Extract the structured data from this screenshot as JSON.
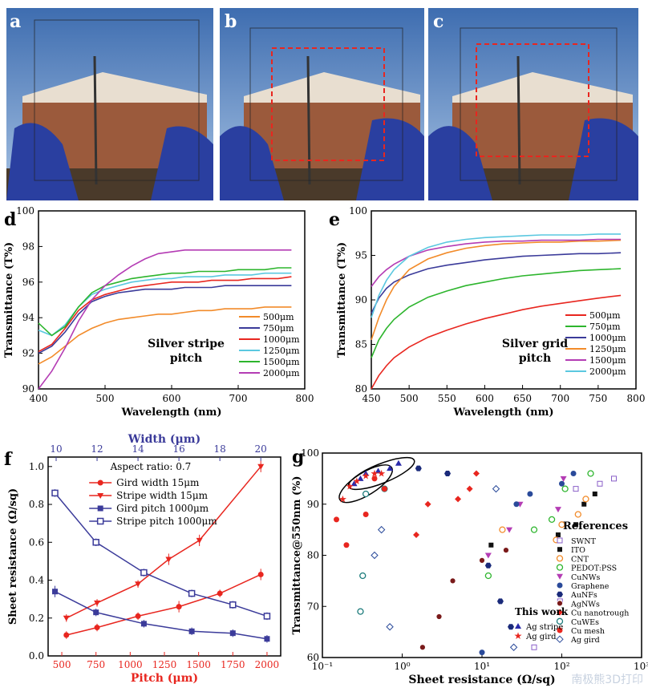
{
  "photos": [
    {
      "label": "a",
      "marked": false
    },
    {
      "label": "b",
      "marked": true
    },
    {
      "label": "c",
      "marked": true
    }
  ],
  "watermark": "南极熊3D打印",
  "chart_data": [
    {
      "id": "d",
      "panel_label": "d",
      "type": "line",
      "xlabel": "Wavelength (nm)",
      "ylabel": "Transmittance (T%)",
      "xlim": [
        400,
        800
      ],
      "ylim": [
        90,
        100
      ],
      "xticks": [
        400,
        500,
        600,
        700,
        800
      ],
      "yticks": [
        90,
        92,
        94,
        96,
        98,
        100
      ],
      "annotation": [
        "Silver stripe",
        "pitch"
      ],
      "legend_position": "bottom-right",
      "series": [
        {
          "name": "500μm",
          "color": "#f28b2a",
          "x": [
            400,
            420,
            440,
            460,
            480,
            500,
            520,
            540,
            560,
            580,
            600,
            620,
            640,
            660,
            680,
            700,
            720,
            740,
            760,
            780
          ],
          "y": [
            91.4,
            91.8,
            92.4,
            93.0,
            93.4,
            93.7,
            93.9,
            94.0,
            94.1,
            94.2,
            94.2,
            94.3,
            94.4,
            94.4,
            94.5,
            94.5,
            94.5,
            94.6,
            94.6,
            94.6
          ]
        },
        {
          "name": "750μm",
          "color": "#3b3b9a",
          "x": [
            400,
            420,
            440,
            460,
            480,
            500,
            520,
            540,
            560,
            580,
            600,
            620,
            640,
            660,
            680,
            700,
            720,
            740,
            760,
            780
          ],
          "y": [
            92.0,
            92.4,
            93.2,
            94.2,
            94.9,
            95.2,
            95.4,
            95.5,
            95.6,
            95.6,
            95.6,
            95.7,
            95.7,
            95.7,
            95.8,
            95.8,
            95.8,
            95.8,
            95.8,
            95.8
          ]
        },
        {
          "name": "1000μm",
          "color": "#e8261f",
          "x": [
            400,
            420,
            440,
            460,
            480,
            500,
            520,
            540,
            560,
            580,
            600,
            620,
            640,
            660,
            680,
            700,
            720,
            740,
            760,
            780
          ],
          "y": [
            92.1,
            92.5,
            93.4,
            94.4,
            95.0,
            95.3,
            95.5,
            95.7,
            95.8,
            95.9,
            96.0,
            96.0,
            96.0,
            96.1,
            96.1,
            96.1,
            96.2,
            96.2,
            96.2,
            96.3
          ]
        },
        {
          "name": "1250μm",
          "color": "#5bc8e0",
          "x": [
            400,
            420,
            440,
            460,
            480,
            500,
            520,
            540,
            560,
            580,
            600,
            620,
            640,
            660,
            680,
            700,
            720,
            740,
            760,
            780
          ],
          "y": [
            93.3,
            93.0,
            93.6,
            94.6,
            95.3,
            95.6,
            95.8,
            96.0,
            96.1,
            96.2,
            96.2,
            96.3,
            96.3,
            96.3,
            96.4,
            96.4,
            96.4,
            96.5,
            96.5,
            96.5
          ]
        },
        {
          "name": "1500μm",
          "color": "#2db52d",
          "x": [
            400,
            420,
            440,
            460,
            480,
            500,
            520,
            540,
            560,
            580,
            600,
            620,
            640,
            660,
            680,
            700,
            720,
            740,
            760,
            780
          ],
          "y": [
            93.7,
            93.0,
            93.5,
            94.6,
            95.4,
            95.8,
            96.0,
            96.2,
            96.3,
            96.4,
            96.5,
            96.5,
            96.6,
            96.6,
            96.6,
            96.7,
            96.7,
            96.7,
            96.8,
            96.8
          ]
        },
        {
          "name": "2000μm",
          "color": "#b43cb4",
          "x": [
            400,
            420,
            440,
            460,
            480,
            500,
            520,
            540,
            560,
            580,
            600,
            620,
            640,
            660,
            680,
            700,
            720,
            740,
            760,
            780
          ],
          "y": [
            90.0,
            91.0,
            92.3,
            93.8,
            95.0,
            95.8,
            96.4,
            96.9,
            97.3,
            97.6,
            97.7,
            97.8,
            97.8,
            97.8,
            97.8,
            97.8,
            97.8,
            97.8,
            97.8,
            97.8
          ]
        }
      ]
    },
    {
      "id": "e",
      "panel_label": "e",
      "type": "line",
      "xlabel": "Wavelength (nm)",
      "ylabel": "Transmittance (T%)",
      "xlim": [
        450,
        800
      ],
      "ylim": [
        80,
        100
      ],
      "xticks": [
        450,
        500,
        550,
        600,
        650,
        700,
        750,
        800
      ],
      "yticks": [
        80,
        85,
        90,
        95,
        100
      ],
      "annotation": [
        "Silver grid",
        "pitch"
      ],
      "legend_position": "bottom-right",
      "series": [
        {
          "name": "500μm",
          "color": "#e8261f",
          "x": [
            450,
            460,
            470,
            480,
            500,
            525,
            550,
            575,
            600,
            625,
            650,
            675,
            700,
            725,
            750,
            780
          ],
          "y": [
            80.0,
            81.5,
            82.6,
            83.5,
            84.7,
            85.8,
            86.6,
            87.3,
            87.9,
            88.4,
            88.9,
            89.3,
            89.6,
            89.9,
            90.2,
            90.5
          ]
        },
        {
          "name": "750μm",
          "color": "#2db52d",
          "x": [
            450,
            460,
            470,
            480,
            500,
            525,
            550,
            575,
            600,
            625,
            650,
            675,
            700,
            725,
            750,
            780
          ],
          "y": [
            83.5,
            85.5,
            86.8,
            87.8,
            89.2,
            90.3,
            91.0,
            91.6,
            92.0,
            92.4,
            92.7,
            92.9,
            93.1,
            93.3,
            93.4,
            93.5
          ]
        },
        {
          "name": "1000μm",
          "color": "#3b3b9a",
          "x": [
            450,
            460,
            470,
            480,
            500,
            525,
            550,
            575,
            600,
            625,
            650,
            675,
            700,
            725,
            750,
            780
          ],
          "y": [
            88.5,
            90.2,
            91.3,
            92.0,
            92.8,
            93.5,
            93.9,
            94.2,
            94.5,
            94.7,
            94.9,
            95.0,
            95.1,
            95.2,
            95.2,
            95.3
          ]
        },
        {
          "name": "1250μm",
          "color": "#f28b2a",
          "x": [
            450,
            460,
            470,
            480,
            500,
            525,
            550,
            575,
            600,
            625,
            650,
            675,
            700,
            725,
            750,
            780
          ],
          "y": [
            85.5,
            88.0,
            90.0,
            91.5,
            93.4,
            94.6,
            95.3,
            95.8,
            96.1,
            96.3,
            96.4,
            96.5,
            96.5,
            96.6,
            96.6,
            96.7
          ]
        },
        {
          "name": "1500μm",
          "color": "#b43cb4",
          "x": [
            450,
            460,
            470,
            480,
            500,
            525,
            550,
            575,
            600,
            625,
            650,
            675,
            700,
            725,
            750,
            780
          ],
          "y": [
            91.5,
            92.6,
            93.4,
            94.0,
            94.9,
            95.6,
            96.0,
            96.3,
            96.5,
            96.6,
            96.6,
            96.7,
            96.7,
            96.7,
            96.8,
            96.8
          ]
        },
        {
          "name": "2000μm",
          "color": "#5bc8e0",
          "x": [
            450,
            460,
            470,
            480,
            500,
            525,
            550,
            575,
            600,
            625,
            650,
            675,
            700,
            725,
            750,
            780
          ],
          "y": [
            88.0,
            90.5,
            92.2,
            93.4,
            94.9,
            95.9,
            96.5,
            96.8,
            97.0,
            97.1,
            97.2,
            97.3,
            97.3,
            97.3,
            97.4,
            97.4
          ]
        }
      ]
    },
    {
      "id": "f",
      "panel_label": "f",
      "type": "line",
      "xlabel": "Pitch (μm)",
      "x2label": "Width (μm)",
      "ylabel": "Sheet resistance (Ω/sq)",
      "xlim": [
        400,
        2100
      ],
      "x2lim": [
        10,
        20
      ],
      "ylim": [
        0,
        1.05
      ],
      "xticks": [
        500,
        750,
        1000,
        1250,
        1500,
        1750,
        2000
      ],
      "x2ticks": [
        10,
        12,
        14,
        16,
        18,
        20
      ],
      "yticks": [
        0.0,
        0.2,
        0.4,
        0.6,
        0.8,
        1.0
      ],
      "legend_title": "Aspect ratio: 0.7",
      "series": [
        {
          "name": "Gird width  15μm",
          "color": "#e8261f",
          "marker": "circle",
          "axis": "top",
          "x": [
            10.5,
            12,
            14,
            16,
            18,
            20
          ],
          "y": [
            0.11,
            0.15,
            0.21,
            0.26,
            0.33,
            0.43
          ],
          "err": [
            0.02,
            0.02,
            0.02,
            0.03,
            0.02,
            0.03
          ]
        },
        {
          "name": "Stripe width 15μm",
          "color": "#e8261f",
          "marker": "triangle-down",
          "axis": "top",
          "x": [
            10.5,
            12,
            14,
            15.5,
            17,
            20
          ],
          "y": [
            0.2,
            0.28,
            0.38,
            0.51,
            0.61,
            1.0
          ],
          "err": [
            0.02,
            0.02,
            0.02,
            0.03,
            0.03,
            0.03
          ]
        },
        {
          "name": "Gird pitch  1000μm",
          "color": "#3b3b9a",
          "marker": "square",
          "axis": "bottom",
          "x": [
            450,
            750,
            1100,
            1450,
            1750,
            2000
          ],
          "y": [
            0.34,
            0.23,
            0.17,
            0.13,
            0.12,
            0.09
          ],
          "err": [
            0.03,
            0.02,
            0.02,
            0.02,
            0.02,
            0.02
          ]
        },
        {
          "name": "Stripe pitch 1000μm",
          "color": "#3b3b9a",
          "marker": "square-open",
          "axis": "bottom",
          "x": [
            450,
            750,
            1100,
            1450,
            1750,
            2000
          ],
          "y": [
            0.86,
            0.6,
            0.44,
            0.33,
            0.27,
            0.21
          ],
          "err": [
            0.02,
            0.02,
            0.02,
            0.02,
            0.02,
            0.02
          ]
        }
      ]
    },
    {
      "id": "g",
      "panel_label": "g",
      "type": "scatter",
      "xlabel": "Sheet resistance (Ω/sq)",
      "ylabel": "Transmittance@550nm (%)",
      "xscale": "log",
      "xlim": [
        0.1,
        1000
      ],
      "ylim": [
        60,
        100
      ],
      "xtick_labels": [
        "10⁻¹",
        "10⁰",
        "10¹",
        "10²",
        "10³"
      ],
      "yticks": [
        60,
        70,
        80,
        90,
        100
      ],
      "legend_title": "References",
      "legend2_title": "This work",
      "series": [
        {
          "name": "SWNT",
          "color": "#8a5fc8",
          "marker": "square-open",
          "x": [
            45,
            95,
            150,
            300,
            450
          ],
          "y": [
            62,
            71,
            93,
            94,
            95
          ]
        },
        {
          "name": "ITO",
          "color": "#111111",
          "marker": "square",
          "x": [
            13,
            90,
            150,
            190,
            260
          ],
          "y": [
            82,
            84,
            86,
            90,
            92
          ]
        },
        {
          "name": "CNT",
          "color": "#f28b2a",
          "marker": "circle-open",
          "x": [
            18,
            85,
            100,
            160,
            200
          ],
          "y": [
            85,
            83,
            86,
            88,
            91
          ]
        },
        {
          "name": "PEDOT:PSS",
          "color": "#2db52d",
          "marker": "circle-open",
          "x": [
            12,
            45,
            75,
            110,
            230
          ],
          "y": [
            76,
            85,
            87,
            93,
            96
          ]
        },
        {
          "name": "CuNWs",
          "color": "#b43cb4",
          "marker": "triangle-down",
          "x": [
            12,
            22,
            30,
            90,
            105
          ],
          "y": [
            80,
            85,
            90,
            89,
            95
          ]
        },
        {
          "name": "Graphene",
          "color": "#2a4a9a",
          "marker": "circle",
          "x": [
            10,
            27,
            40,
            100,
            140
          ],
          "y": [
            61,
            90,
            92,
            94,
            96
          ]
        },
        {
          "name": "AuNFs",
          "color": "#1a2a7a",
          "marker": "hexagon",
          "x": [
            1.6,
            3.7,
            12,
            17,
            23
          ],
          "y": [
            97,
            96,
            78,
            71,
            66
          ]
        },
        {
          "name": "AgNWs",
          "color": "#7a1a1a",
          "marker": "circle-half",
          "x": [
            1.8,
            2.9,
            4.3,
            10,
            20
          ],
          "y": [
            62,
            68,
            75,
            79,
            81
          ]
        },
        {
          "name": "Cu nanotrough",
          "color": "#e8261f",
          "marker": "diamond",
          "x": [
            1.5,
            2.1,
            5,
            7,
            8.5
          ],
          "y": [
            84,
            90,
            91,
            93,
            96
          ]
        },
        {
          "name": "CuWEs",
          "color": "#1a7a7a",
          "marker": "circle-open",
          "x": [
            0.3,
            0.32,
            0.35,
            0.6
          ],
          "y": [
            69,
            76,
            92,
            93
          ]
        },
        {
          "name": "Cu mesh",
          "color": "#e8261f",
          "marker": "circle",
          "x": [
            0.15,
            0.2,
            0.35,
            0.45,
            0.6
          ],
          "y": [
            87,
            82,
            88,
            95,
            93
          ]
        },
        {
          "name": "Ag gird",
          "color": "#2a4a9a",
          "marker": "diamond-half",
          "x": [
            0.45,
            0.55,
            0.7,
            15,
            25
          ],
          "y": [
            80,
            85,
            66,
            93,
            62
          ]
        },
        {
          "name": "Ag stripe",
          "color": "#2a2aaa",
          "marker": "triangle",
          "legend": "work",
          "x": [
            0.25,
            0.3,
            0.35,
            0.5,
            0.7,
            0.9
          ],
          "y": [
            94,
            95,
            96,
            96.5,
            97,
            98
          ]
        },
        {
          "name": "Ag gird",
          "color": "#e8261f",
          "marker": "star",
          "legend": "work",
          "x": [
            0.18,
            0.22,
            0.27,
            0.35,
            0.45,
            0.55
          ],
          "y": [
            91,
            93.5,
            94.5,
            95.5,
            96,
            96
          ]
        }
      ]
    }
  ]
}
